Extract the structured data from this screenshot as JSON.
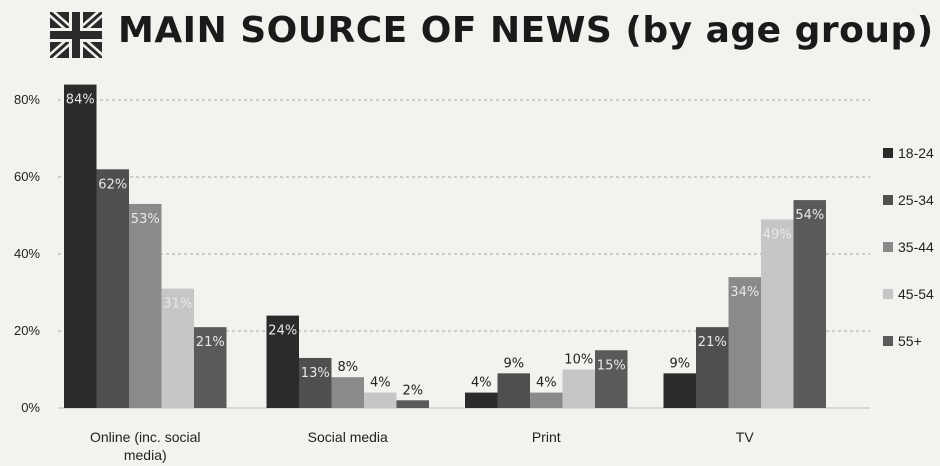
{
  "title": "MAIN SOURCE OF NEWS (by age group)",
  "icons": {
    "flag": "union-jack-flag-icon"
  },
  "chart_data": {
    "type": "bar",
    "title": "MAIN SOURCE OF NEWS (by age group)",
    "categories": [
      "Online (inc. social media)",
      "Social media",
      "Print",
      "TV"
    ],
    "category_lines": [
      [
        "Online (inc. social",
        "media)"
      ],
      [
        "Social media"
      ],
      [
        "Print"
      ],
      [
        "TV"
      ]
    ],
    "series": [
      {
        "name": "18-24",
        "values": [
          84,
          24,
          4,
          9
        ],
        "labels": [
          "84%",
          "24%",
          "4%",
          "9%"
        ],
        "color": "#2b2b2b"
      },
      {
        "name": "25-34",
        "values": [
          62,
          13,
          9,
          21
        ],
        "labels": [
          "62%",
          "13%",
          "9%",
          "21%"
        ],
        "color": "#4f4f4f"
      },
      {
        "name": "35-44",
        "values": [
          53,
          8,
          4,
          34
        ],
        "labels": [
          "53%",
          "8%",
          "4%",
          "34%"
        ],
        "color": "#8a8a8a"
      },
      {
        "name": "45-54",
        "values": [
          31,
          4,
          10,
          49
        ],
        "labels": [
          "31%",
          "4%",
          "10%",
          "49%"
        ],
        "color": "#c6c6c6"
      },
      {
        "name": "55+",
        "values": [
          21,
          2,
          15,
          54
        ],
        "labels": [
          "21%",
          "2%",
          "15%",
          "54%"
        ],
        "color": "#5a5a5a"
      }
    ],
    "ylim": [
      0,
      80
    ],
    "yticks": [
      0,
      20,
      40,
      60,
      80
    ],
    "ytick_labels": [
      "0%",
      "20%",
      "40%",
      "60%",
      "80%"
    ],
    "xlabel": "",
    "ylabel": "",
    "grid": "horizontal-dashed",
    "legend_position": "right"
  }
}
